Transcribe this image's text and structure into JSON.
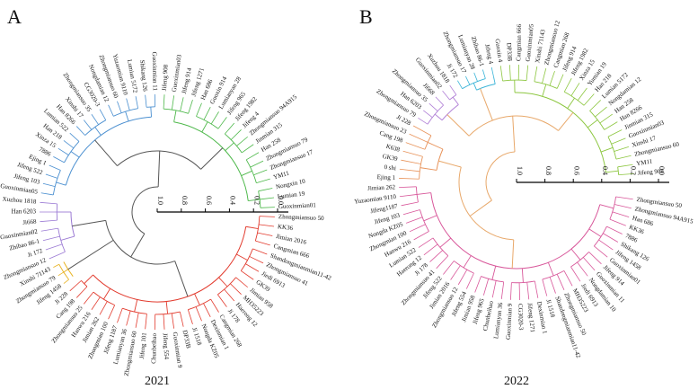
{
  "panels": [
    {
      "id": "A",
      "letter": "A",
      "year": "2021",
      "axis_ticks": [
        "1.0",
        "0.8",
        "0.6",
        "0.4",
        "0.2",
        "0.0"
      ],
      "clades": [
        {
          "color": "#e23b2e",
          "leaves": [
            "Zhongmiansuo 50",
            "KK36",
            "Jimian 2016",
            "Cangmian 666",
            "Shandongmianmian11-42",
            "Zhongmiansuo 41",
            "Jiedi 6913",
            "GK39",
            "Jimian 958",
            "MH35223",
            "Haerong 12",
            "Ji 178",
            "Cangmian 268",
            "Dexinmian 1",
            "Nongda KZ05",
            "Ji 1518",
            "DP33B",
            "Guoxinmian 9",
            "Jifeng 554",
            "Chunbeihao",
            "Jifeng 101",
            "Zhongmiansuo 60",
            "Lumianyan 36",
            "Jifeng 1187",
            "Zhongmian 100",
            "Jimian 262",
            "Hanwu 216",
            "Zhongmiansuo 25",
            "Cang 198",
            "Ji 228"
          ]
        },
        {
          "color": "#e8b323",
          "leaves": [
            "Jifeng 1458",
            "Zhongmiansuo 79",
            "Xinshi 71143"
          ]
        },
        {
          "color": "#9b7ad4",
          "leaves": [
            "Zhongmiansuo 12",
            "Ji 172",
            "Zhibao 86-1",
            "Guoxinmian02",
            "Ji668",
            "Han 6203",
            "Xuzhou 1818"
          ]
        },
        {
          "color": "#4a8fd0",
          "leaves": [
            "Guoxinmian05",
            "Jifeng 103",
            "Jifeng 522",
            "Ejing 1",
            "7886",
            "Xinza 15",
            "Han 218",
            "Lumian 522",
            "Han 8266",
            "Xinshi 17",
            "Zhongmiansuo 35",
            "CG3020-3",
            "Nongdamian 12",
            "Zhongmiansuo 60",
            "Yuzaomian 9110",
            "Lumian 5172",
            "Shikang 126",
            "Guoxinmian 11"
          ]
        },
        {
          "color": "#4db84a",
          "leaves": [
            "Jifeng 908",
            "Guoxinmian03",
            "Jifeng 914",
            "Jifeng 1271",
            "Han 686",
            "Guoxin 914",
            "Lumianyan 28",
            "Jifeng 965",
            "Jifeng 1982",
            "Jifeng 4",
            "Zhongmiansuo 94A915",
            "Jinmian 315",
            "Han 258",
            "Zhongmiansuo 79",
            "Zhongmiansuo 17",
            "YM11",
            "Nongxin 10",
            "Lumian 19",
            "Guoxinmian01"
          ]
        }
      ]
    },
    {
      "id": "B",
      "letter": "B",
      "year": "2022",
      "axis_ticks": [
        "1.0",
        "0.8",
        "0.6",
        "0.4",
        "0.2",
        "0.0"
      ],
      "clades": [
        {
          "color": "#d8579a",
          "leaves": [
            "Zhongmiansuo 50",
            "Zhongmiansuo 94A915",
            "Han 686",
            "KK36",
            "7886",
            "Shikang 126",
            "Jifeng 1458",
            "Guoxinmian01",
            "Jifeng 914",
            "Guoxinmian 11",
            "Nongdamian 10",
            "Jiedi 6913",
            "MH35223",
            "Zhongmiansuo 50",
            "Shandongmianmian11-42",
            "Ji 1518",
            "Dexinmian 1",
            "Jifeng 1271",
            "CG3020-3",
            "Guoxinmian 9",
            "Lumianyan 36",
            "Chunbeihao",
            "Jifeng 965",
            "Jimian 958",
            "Jifeng 554",
            "Zhongmiansuo 12",
            "Jimian 2016",
            "Jifeng 522",
            "Zhongmiansuo 41",
            "Ji 178",
            "Haerong 12",
            "Lumian 522",
            "Hanwu 216",
            "Zhongmian 100",
            "Nongda KZ05",
            "Jifeng 103",
            "Jifeng1187",
            "Yuzaomian 9110",
            "Jimian 262"
          ]
        },
        {
          "color": "#e8935a",
          "leaves": [
            "Ejing 1",
            "0 shi",
            "GK39",
            "K638",
            "Cang 198",
            "Zhongmiansuo 23",
            "Ji 228"
          ]
        },
        {
          "color": "#b07fd6",
          "leaves": [
            "Zhongmiansuo 79",
            "Han 6203",
            "Zhongmiansuo 35",
            "Ji668",
            "Guoxinmian02",
            "Xuzhou 1818"
          ]
        },
        {
          "color": "#3ab4d8",
          "leaves": [
            "Ji 172",
            "Zhongmiansuo 17",
            "Lumianyan 28",
            "Zhibao 86-1",
            "Jifeng 4"
          ]
        },
        {
          "color": "#8cc63f",
          "leaves": [
            "Guoxin 4",
            "DP33B",
            "Cangmian 666",
            "Guoxinmian05",
            "Xinshi 71143",
            "Zhongmiansuo 12",
            "Cangmian 268",
            "Jifeng 914",
            "Jifeng 1982",
            "Xinza 15",
            "Yumian 19",
            "Han 218",
            "Lumian 5172",
            "Nongdamian 12",
            "Han 258",
            "Han 8266",
            "Jinmian 315",
            "Guoxinmian03",
            "Xinshi 17",
            "Zhongmiansuo 60",
            "YM11",
            "Jifeng 908"
          ]
        }
      ]
    }
  ]
}
